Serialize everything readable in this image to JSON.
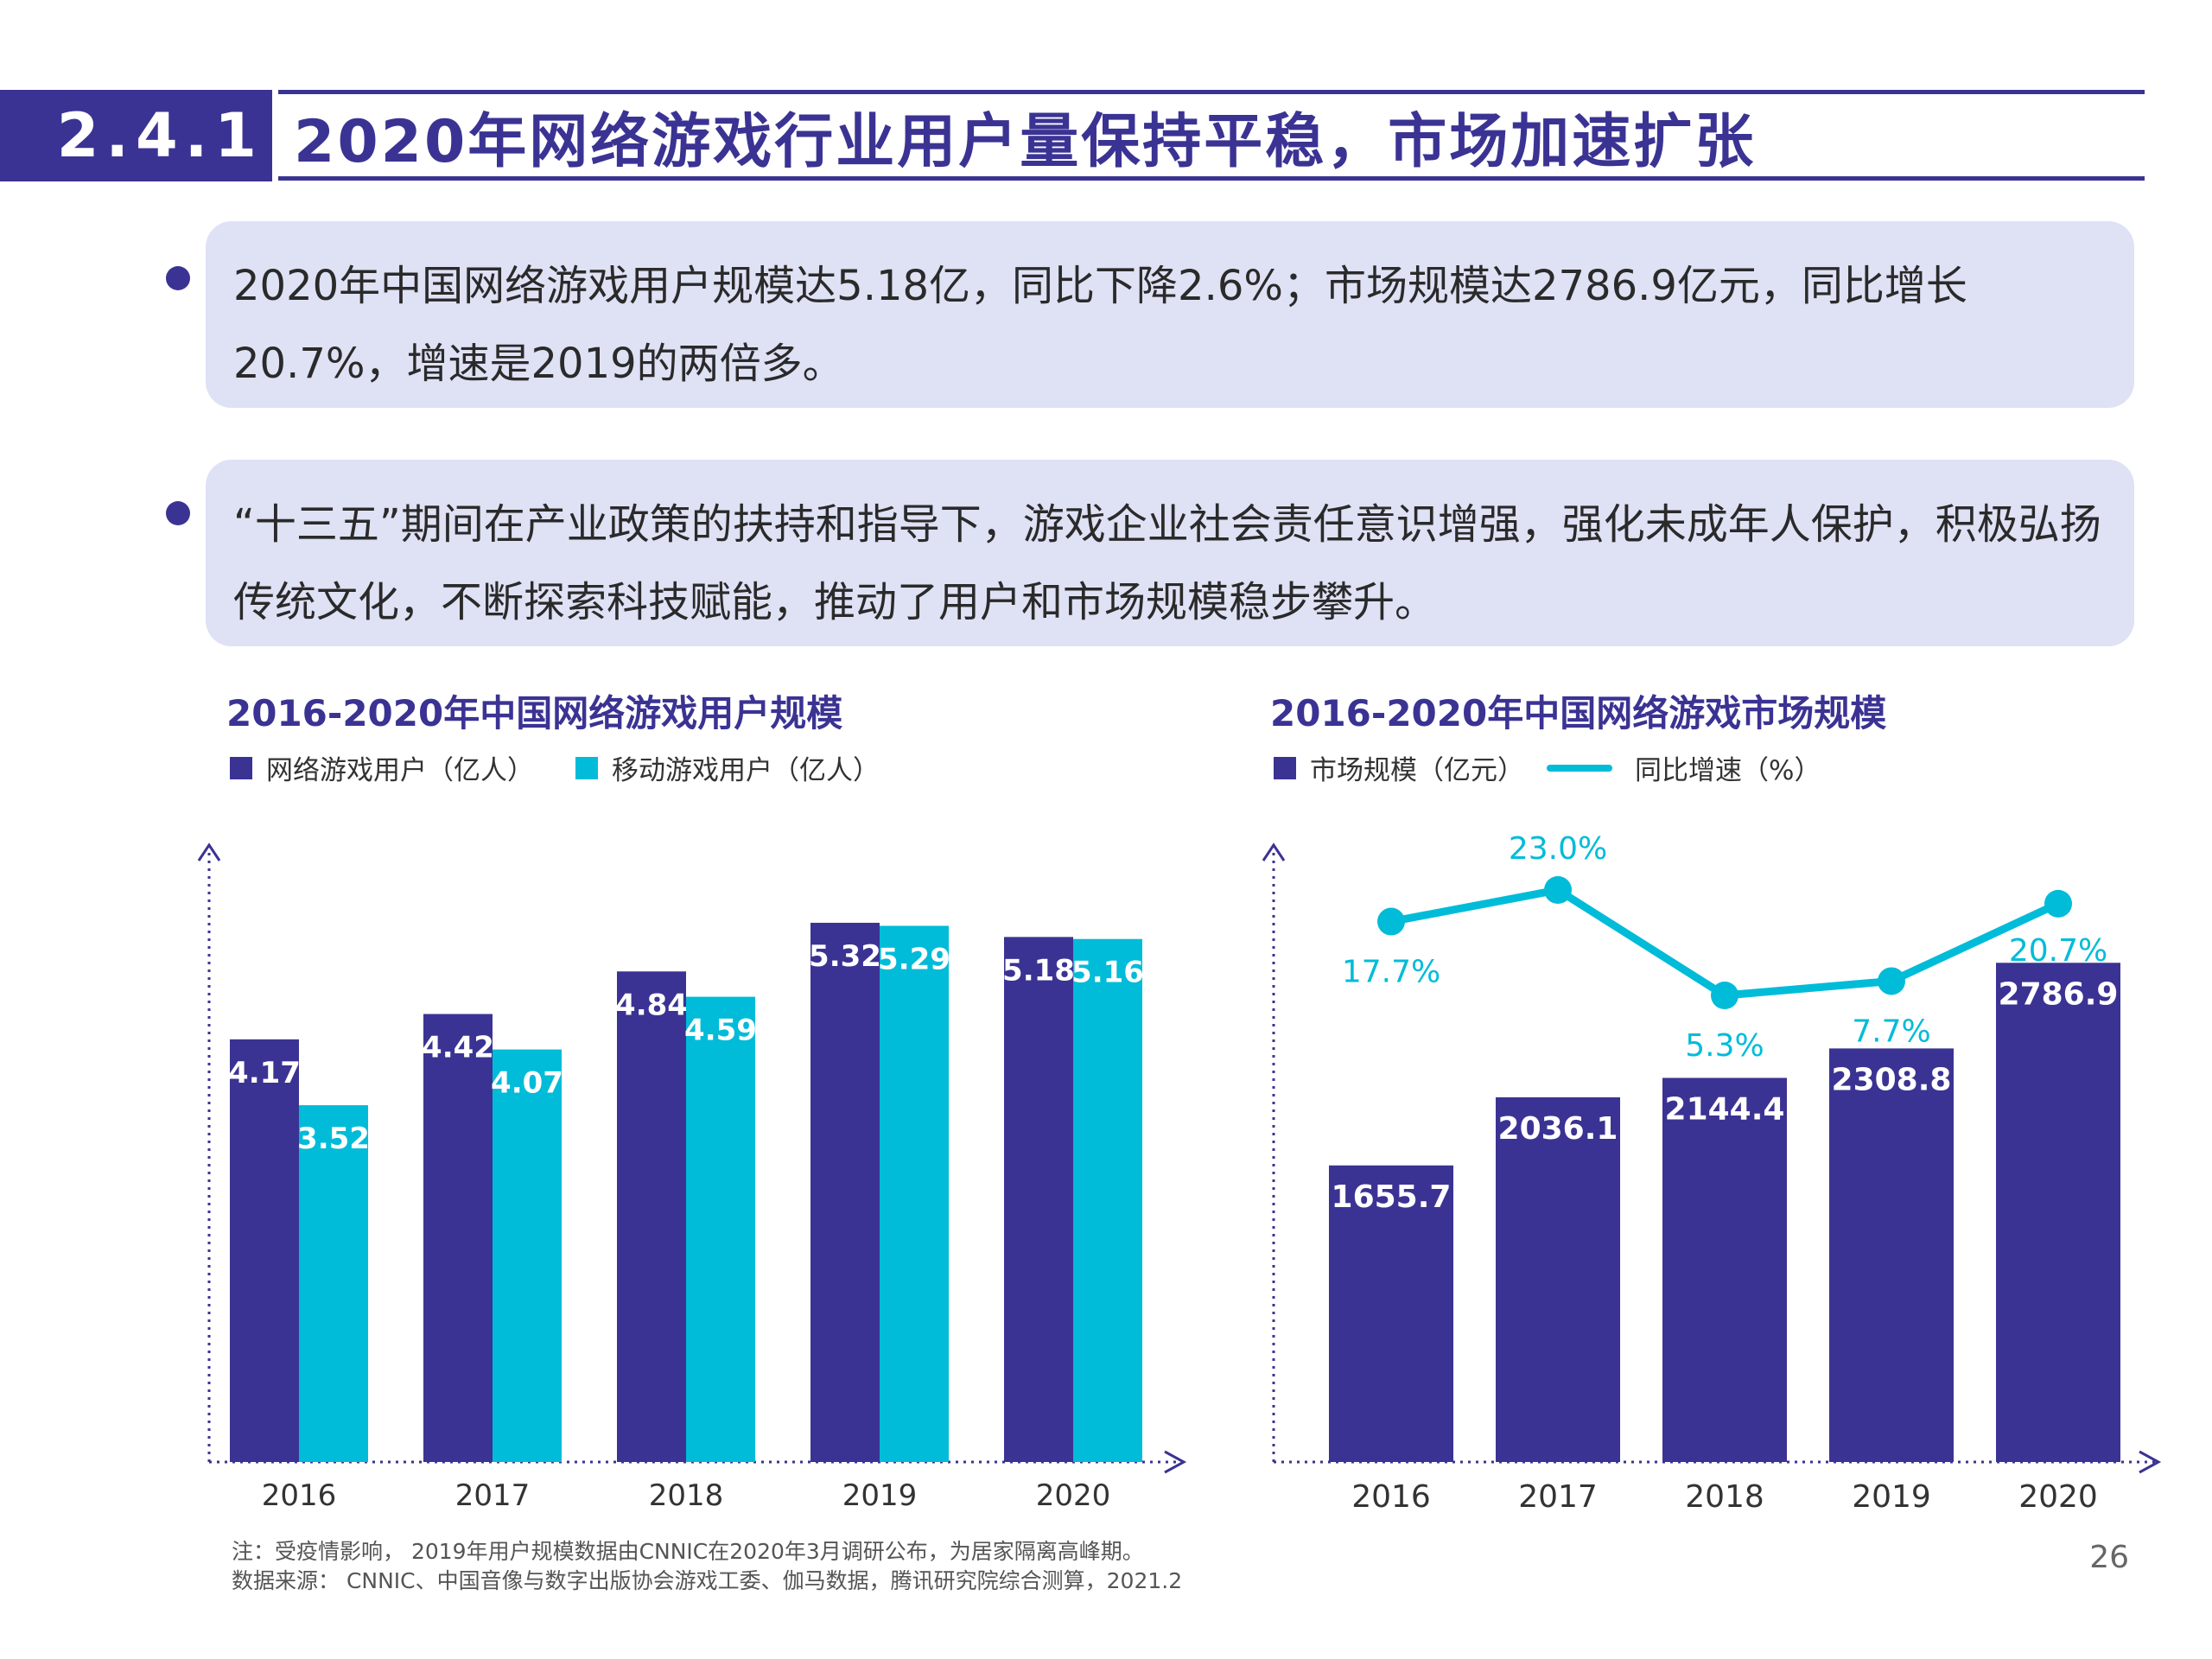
{
  "header": {
    "section_number": "2.4.1",
    "title": "2020年网络游戏行业用户量保持平稳，市场加速扩张"
  },
  "bullets": [
    {
      "text": "2020年中国网络游戏用户规模达5.18亿，同比下降2.6%；市场规模达2786.9亿元，同比增长20.7%，增速是2019的两倍多。"
    },
    {
      "text": "“十三五”期间在产业政策的扶持和指导下，游戏企业社会责任意识增强，强化未成年人保护，积极弘扬传统文化，不断探索科技赋能，推动了用户和市场规模稳步攀升。"
    }
  ],
  "colors": {
    "primary": "#3b3393",
    "accent": "#00bcd8",
    "bullet_bg": "#dfe1f5"
  },
  "chart_data": [
    {
      "type": "bar",
      "title": "2016-2020年中国网络游戏用户规模",
      "categories": [
        "2016",
        "2017",
        "2018",
        "2019",
        "2020"
      ],
      "series": [
        {
          "name": "网络游戏用户（亿人）",
          "color": "#3b3393",
          "values": [
            4.17,
            4.42,
            4.84,
            5.32,
            5.18
          ]
        },
        {
          "name": "移动游戏用户（亿人）",
          "color": "#00bcd8",
          "values": [
            3.52,
            4.07,
            4.59,
            5.29,
            5.16
          ]
        }
      ],
      "legend_position": "top-left",
      "grid": false
    },
    {
      "type": "bar",
      "title": "2016-2020年中国网络游戏市场规模",
      "categories": [
        "2016",
        "2017",
        "2018",
        "2019",
        "2020"
      ],
      "series": [
        {
          "name": "市场规模（亿元）",
          "type": "bar",
          "color": "#3b3393",
          "values": [
            1655.7,
            2036.1,
            2144.4,
            2308.8,
            2786.9
          ]
        },
        {
          "name": "同比增速（%）",
          "type": "line",
          "color": "#00bcd8",
          "values": [
            17.7,
            23.0,
            5.3,
            7.7,
            20.7
          ],
          "labels": [
            "17.7%",
            "23.0%",
            "5.3%",
            "7.7%",
            "20.7%"
          ]
        }
      ],
      "legend_position": "top-left",
      "grid": false
    }
  ],
  "footnotes": {
    "note": "注：受疫情影响， 2019年用户规模数据由CNNIC在2020年3月调研公布，为居家隔离高峰期。",
    "source": "数据来源： CNNIC、中国音像与数字出版协会游戏工委、伽马数据，腾讯研究院综合测算，2021.2"
  },
  "page_number": "26"
}
